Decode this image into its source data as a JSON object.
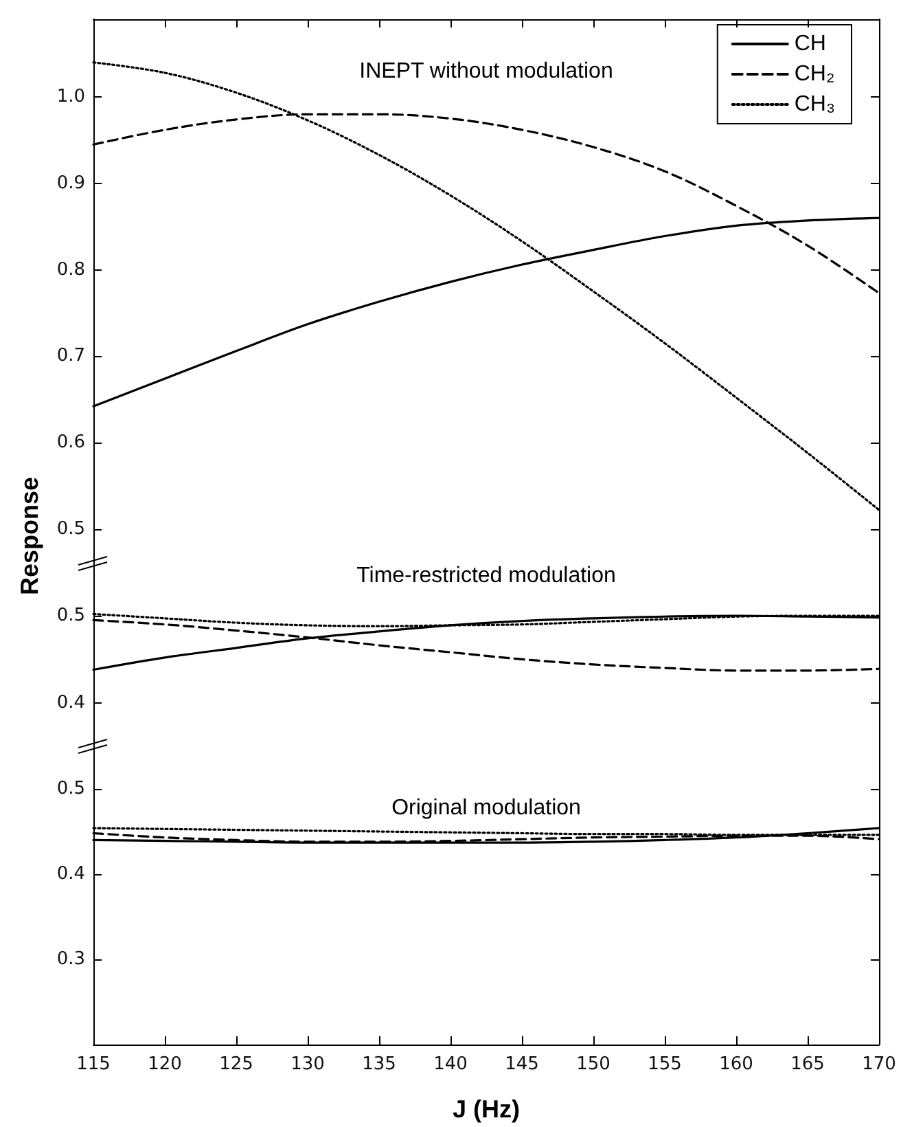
{
  "chart_data": [
    {
      "type": "line",
      "annotations": [
        "INEPT without modulation"
      ],
      "ylabel": "Response",
      "x": [
        115,
        120,
        125,
        130,
        135,
        140,
        145,
        150,
        155,
        160,
        165,
        170
      ],
      "marker": "none",
      "legend": "top right",
      "tick_labels": "y",
      "xlim": [
        115,
        170
      ],
      "xticks": [
        115,
        120,
        125,
        130,
        135,
        140,
        145,
        150,
        155,
        160,
        165,
        170
      ],
      "ylim": [
        0.46,
        1.09
      ],
      "yticks": [
        0.5,
        0.6,
        0.7,
        0.8,
        0.9,
        {
          "value": 1.0,
          "label": "1.0"
        }
      ],
      "series": [
        {
          "name": "CH",
          "color": "#000000",
          "line_style": "solid",
          "values": [
            0.642,
            0.674,
            0.706,
            0.737,
            0.763,
            0.786,
            0.806,
            0.823,
            0.839,
            0.851,
            0.857,
            0.86
          ]
        },
        {
          "name": "CH₂",
          "color": "#000000",
          "line_style": "dashed",
          "values": [
            0.945,
            0.962,
            0.974,
            0.98,
            0.98,
            0.975,
            0.962,
            0.942,
            0.914,
            0.874,
            0.828,
            0.773
          ]
        },
        {
          "name": "CH₃",
          "color": "#000000",
          "line_style": "dotted",
          "values": [
            1.04,
            1.028,
            1.005,
            0.973,
            0.933,
            0.886,
            0.833,
            0.775,
            0.715,
            0.652,
            0.588,
            0.522
          ]
        }
      ]
    },
    {
      "type": "line",
      "annotations": [
        "Time-restricted modulation"
      ],
      "x": [
        115,
        120,
        125,
        130,
        135,
        140,
        145,
        150,
        155,
        160,
        165,
        170
      ],
      "marker": "none",
      "tick_labels": "y",
      "xlim": [
        115,
        170
      ],
      "xticks": [
        115,
        120,
        125,
        130,
        135,
        140,
        145,
        150,
        155,
        160,
        165,
        170
      ],
      "ylim": [
        0.35,
        0.56
      ],
      "yticks": [
        0.4,
        0.5
      ],
      "series": [
        {
          "color": "#000000",
          "line_style": "solid",
          "values": [
            0.438,
            0.452,
            0.463,
            0.474,
            0.482,
            0.489,
            0.494,
            0.497,
            0.499,
            0.5,
            0.499,
            0.498
          ]
        },
        {
          "color": "#000000",
          "line_style": "dashed",
          "values": [
            0.495,
            0.49,
            0.483,
            0.475,
            0.466,
            0.458,
            0.45,
            0.444,
            0.44,
            0.437,
            0.437,
            0.439
          ]
        },
        {
          "color": "#000000",
          "line_style": "dotted",
          "values": [
            0.502,
            0.497,
            0.492,
            0.489,
            0.488,
            0.489,
            0.49,
            0.493,
            0.496,
            0.499,
            0.5,
            0.5
          ]
        }
      ]
    },
    {
      "type": "line",
      "annotations": [
        "Original modulation"
      ],
      "xlabel": "J (Hz)",
      "x": [
        115,
        120,
        125,
        130,
        135,
        140,
        145,
        150,
        155,
        160,
        165,
        170
      ],
      "marker": "none",
      "xlim": [
        115,
        170
      ],
      "xticks": [
        115,
        120,
        125,
        130,
        135,
        140,
        145,
        150,
        155,
        160,
        165,
        170
      ],
      "ylim": [
        0.2,
        0.55
      ],
      "yticks": [
        0.3,
        0.4,
        0.5
      ],
      "series": [
        {
          "color": "#000000",
          "line_style": "solid",
          "values": [
            0.44,
            0.439,
            0.438,
            0.437,
            0.437,
            0.437,
            0.437,
            0.438,
            0.44,
            0.443,
            0.448,
            0.454
          ]
        },
        {
          "color": "#000000",
          "line_style": "dashed",
          "values": [
            0.448,
            0.443,
            0.44,
            0.438,
            0.438,
            0.439,
            0.441,
            0.443,
            0.444,
            0.445,
            0.445,
            0.441
          ]
        },
        {
          "color": "#000000",
          "line_style": "dotted",
          "values": [
            0.454,
            0.453,
            0.452,
            0.451,
            0.45,
            0.449,
            0.448,
            0.447,
            0.447,
            0.446,
            0.446,
            0.446
          ]
        }
      ]
    }
  ]
}
